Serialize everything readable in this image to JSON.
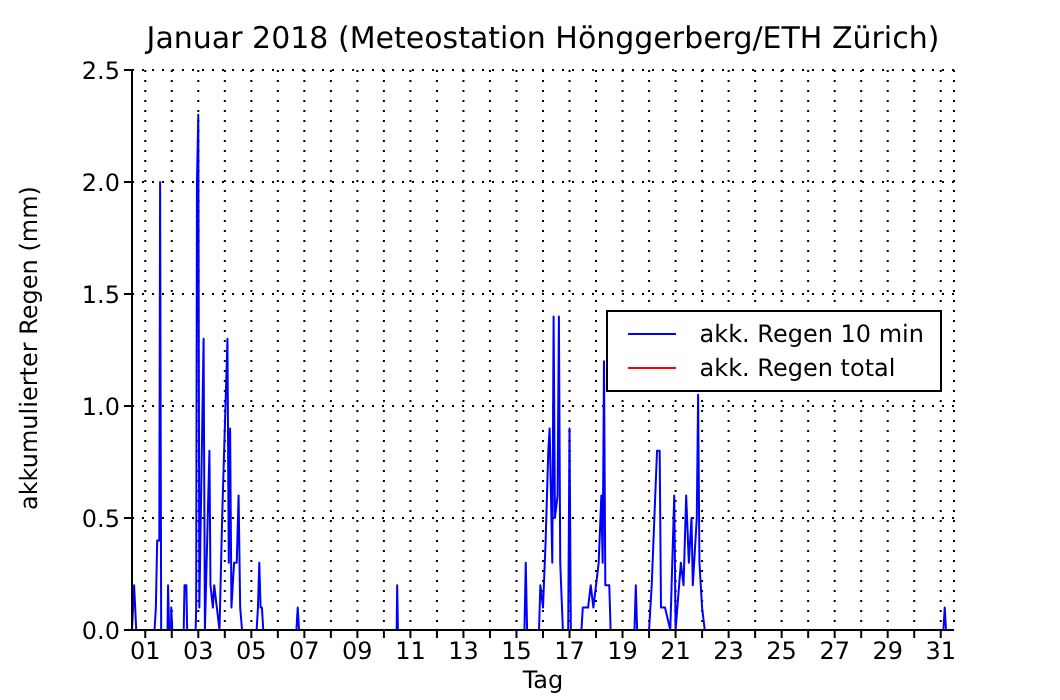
{
  "chart_data": {
    "type": "line",
    "title": "Januar 2018  (Meteostation Hönggerberg/ETH Zürich)",
    "xlabel": "Tag",
    "ylabel": "akkumulierter Regen (mm)",
    "xlim": [
      0,
      31
    ],
    "ylim": [
      0,
      2.5
    ],
    "xticks": [
      {
        "value": 0.5,
        "label": "01"
      },
      {
        "value": 1.5,
        "label": null
      },
      {
        "value": 2.5,
        "label": "03"
      },
      {
        "value": 3.5,
        "label": null
      },
      {
        "value": 4.5,
        "label": "05"
      },
      {
        "value": 5.5,
        "label": null
      },
      {
        "value": 6.5,
        "label": "07"
      },
      {
        "value": 7.5,
        "label": null
      },
      {
        "value": 8.5,
        "label": "09"
      },
      {
        "value": 9.5,
        "label": null
      },
      {
        "value": 10.5,
        "label": "11"
      },
      {
        "value": 11.5,
        "label": null
      },
      {
        "value": 12.5,
        "label": "13"
      },
      {
        "value": 13.5,
        "label": null
      },
      {
        "value": 14.5,
        "label": "15"
      },
      {
        "value": 15.5,
        "label": null
      },
      {
        "value": 16.5,
        "label": "17"
      },
      {
        "value": 17.5,
        "label": null
      },
      {
        "value": 18.5,
        "label": "19"
      },
      {
        "value": 19.5,
        "label": null
      },
      {
        "value": 20.5,
        "label": "21"
      },
      {
        "value": 21.5,
        "label": null
      },
      {
        "value": 22.5,
        "label": "23"
      },
      {
        "value": 23.5,
        "label": null
      },
      {
        "value": 24.5,
        "label": "25"
      },
      {
        "value": 25.5,
        "label": null
      },
      {
        "value": 26.5,
        "label": "27"
      },
      {
        "value": 27.5,
        "label": null
      },
      {
        "value": 28.5,
        "label": "29"
      },
      {
        "value": 29.5,
        "label": null
      },
      {
        "value": 30.5,
        "label": "31"
      }
    ],
    "yticks": [
      {
        "value": 0,
        "label": "0.0"
      },
      {
        "value": 0.5,
        "label": "0.5"
      },
      {
        "value": 1,
        "label": "1.0"
      },
      {
        "value": 1.5,
        "label": "1.5"
      },
      {
        "value": 2,
        "label": "2.0"
      },
      {
        "value": 2.5,
        "label": "2.5"
      }
    ],
    "grid": true,
    "legend": "right",
    "marker": "none",
    "line_style": "solid",
    "series": [
      {
        "name": "akk. Regen 10 min",
        "color": "#0000ff",
        "x": [
          0,
          0.08,
          0.16,
          0.85,
          0.9,
          0.95,
          1.03,
          1.06,
          1.1,
          1.34,
          1.36,
          1.4,
          1.47,
          1.48,
          1.52,
          1.95,
          1.98,
          2.05,
          2.08,
          2.4,
          2.42,
          2.45,
          2.5,
          2.54,
          2.7,
          2.75,
          2.92,
          2.96,
          3.05,
          3.1,
          3.2,
          3.3,
          3.4,
          3.5,
          3.6,
          3.65,
          3.7,
          3.75,
          3.85,
          3.95,
          4.02,
          4.08,
          4.15,
          4.7,
          4.75,
          4.8,
          4.85,
          4.9,
          4.95,
          6.2,
          6.25,
          6.3,
          9.98,
          10,
          10.03,
          14.8,
          14.85,
          14.9,
          15.35,
          15.4,
          15.5,
          15.6,
          15.7,
          15.75,
          15.85,
          15.9,
          15.95,
          16.05,
          16.1,
          16.15,
          16.25,
          16.45,
          16.5,
          16.55,
          16.95,
          17,
          17.1,
          17.2,
          17.3,
          17.4,
          17.6,
          17.7,
          17.75,
          17.8,
          17.85,
          18,
          18.05,
          18.95,
          19,
          19.05,
          19.5,
          19.6,
          19.7,
          19.8,
          19.9,
          19.95,
          20.1,
          20.3,
          20.45,
          20.5,
          20.7,
          20.8,
          20.9,
          21,
          21.1,
          21.15,
          21.3,
          21.35,
          21.4,
          21.5,
          21.6,
          30.6,
          30.65,
          30.7,
          31
        ],
        "values": [
          0,
          0.2,
          0,
          0,
          0.1,
          0.4,
          0.4,
          2.0,
          0,
          0,
          0.2,
          0,
          0,
          0.1,
          0,
          0,
          0.2,
          0.2,
          0,
          0,
          0.1,
          2.0,
          2.3,
          0.1,
          1.3,
          0,
          0.8,
          0.2,
          0.1,
          0.2,
          0.1,
          0,
          0.5,
          0.9,
          1.3,
          0.3,
          0.9,
          0.1,
          0.3,
          0.3,
          0.6,
          0.1,
          0,
          0,
          0.1,
          0.3,
          0.1,
          0.1,
          0,
          0,
          0.1,
          0,
          0,
          0.2,
          0,
          0,
          0.3,
          0,
          0,
          0.2,
          0.1,
          0.4,
          0.8,
          0.9,
          0.3,
          1.4,
          0.5,
          0.6,
          1.4,
          0.3,
          0,
          0,
          0.9,
          0,
          0,
          0.1,
          0.1,
          0.1,
          0.2,
          0.1,
          0.3,
          0.6,
          0.3,
          1.2,
          0.2,
          0.2,
          0,
          0,
          0.2,
          0,
          0,
          0.2,
          0.5,
          0.8,
          0.8,
          0.1,
          0.1,
          0,
          0.6,
          0,
          0.3,
          0.2,
          0.6,
          0.3,
          0.5,
          0.2,
          0.5,
          1.05,
          0.3,
          0.1,
          0,
          0,
          0.1,
          0,
          0
        ]
      },
      {
        "name": "akk. Regen total",
        "color": "#ff0000",
        "values": [
          null
        ]
      }
    ]
  }
}
